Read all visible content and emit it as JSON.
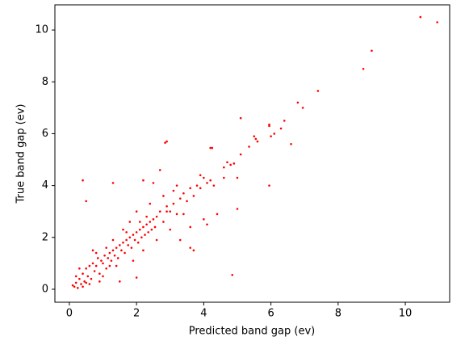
{
  "chart_data": {
    "type": "scatter",
    "x_label": "Predicted band gap (ev)",
    "y_label": "True band gap (ev)",
    "color": "#ff0000",
    "grid": false,
    "xlim": [
      -0.43,
      11.32
    ],
    "ylim": [
      -0.5,
      10.97
    ],
    "xticks": [
      0,
      2,
      4,
      6,
      8,
      10
    ],
    "yticks": [
      0,
      2,
      4,
      6,
      8,
      10
    ],
    "x": [
      10.45,
      10.95,
      9.0,
      8.75,
      7.4,
      6.8,
      6.95,
      6.6,
      6.4,
      6.3,
      6.1,
      5.95,
      5.95,
      6.0,
      5.95,
      5.1,
      2.9,
      2.85,
      4.85,
      0.4,
      0.5,
      4.2,
      4.25,
      5.5,
      5.55,
      5.6,
      5.35,
      5.1,
      4.7,
      4.8,
      4.6,
      4.9,
      5.0,
      5.0,
      4.0,
      3.6,
      3.7,
      2.0,
      1.5,
      1.3,
      0.1,
      0.15,
      0.2,
      0.25,
      0.3,
      0.35,
      0.4,
      0.45,
      0.5,
      0.55,
      0.6,
      0.65,
      0.7,
      0.75,
      0.8,
      0.85,
      0.9,
      0.95,
      1.0,
      1.05,
      1.1,
      1.15,
      1.2,
      1.25,
      1.3,
      1.35,
      1.4,
      1.45,
      1.5,
      1.55,
      1.6,
      1.65,
      1.7,
      1.75,
      1.8,
      1.85,
      1.9,
      1.95,
      2.0,
      2.05,
      2.1,
      2.15,
      2.2,
      2.25,
      2.3,
      2.35,
      2.4,
      2.45,
      2.5,
      2.55,
      2.6,
      2.7,
      2.8,
      2.9,
      3.0,
      3.1,
      3.2,
      3.3,
      3.4,
      3.5,
      3.6,
      3.7,
      3.8,
      3.9,
      4.0,
      4.1,
      4.2,
      1.0,
      1.2,
      0.8,
      1.6,
      1.4,
      2.2,
      2.6,
      2.0,
      2.4,
      1.8,
      2.8,
      3.2,
      2.2,
      2.5,
      3.0,
      3.4,
      3.6,
      2.7,
      1.9,
      1.1,
      0.6,
      0.3,
      0.2,
      0.7,
      2.9,
      3.1,
      3.9,
      4.3,
      4.6,
      4.4,
      4.1,
      3.3,
      1.7,
      2.3,
      2.1,
      1.3,
      0.9,
      0.4,
      0.5
    ],
    "y": [
      10.5,
      10.3,
      9.2,
      8.5,
      7.65,
      7.2,
      7.0,
      5.6,
      6.5,
      6.2,
      6.0,
      6.35,
      6.3,
      5.9,
      4.0,
      6.6,
      5.7,
      5.65,
      0.55,
      4.2,
      3.4,
      5.45,
      5.45,
      5.9,
      5.8,
      5.7,
      5.5,
      5.2,
      4.9,
      4.8,
      4.7,
      4.85,
      4.3,
      3.1,
      2.7,
      1.6,
      1.5,
      0.45,
      0.3,
      4.1,
      0.15,
      0.1,
      0.25,
      0.05,
      0.4,
      0.2,
      0.6,
      0.3,
      0.8,
      0.5,
      0.9,
      0.4,
      1.0,
      0.7,
      0.9,
      1.2,
      0.6,
      1.1,
      1.0,
      1.3,
      0.8,
      1.2,
      1.4,
      1.1,
      1.5,
      1.3,
      1.6,
      1.2,
      1.7,
      1.5,
      1.8,
      1.4,
      1.9,
      1.7,
      2.0,
      1.6,
      2.1,
      1.9,
      2.2,
      1.8,
      2.3,
      2.0,
      2.4,
      2.1,
      2.5,
      2.2,
      2.6,
      2.3,
      2.7,
      2.4,
      2.8,
      3.0,
      2.6,
      3.2,
      3.0,
      3.3,
      2.9,
      3.5,
      3.7,
      3.4,
      3.9,
      3.6,
      4.0,
      3.9,
      4.3,
      4.1,
      4.2,
      0.5,
      0.9,
      1.4,
      2.3,
      0.9,
      1.5,
      1.9,
      3.0,
      3.3,
      2.6,
      3.6,
      4.0,
      4.2,
      4.1,
      2.3,
      2.9,
      2.4,
      4.6,
      1.1,
      1.6,
      0.2,
      0.8,
      0.5,
      1.5,
      3.0,
      3.8,
      4.4,
      4.0,
      4.3,
      2.9,
      2.5,
      1.9,
      2.2,
      2.8,
      2.6,
      1.9,
      0.3,
      0.1,
      0.25
    ]
  }
}
